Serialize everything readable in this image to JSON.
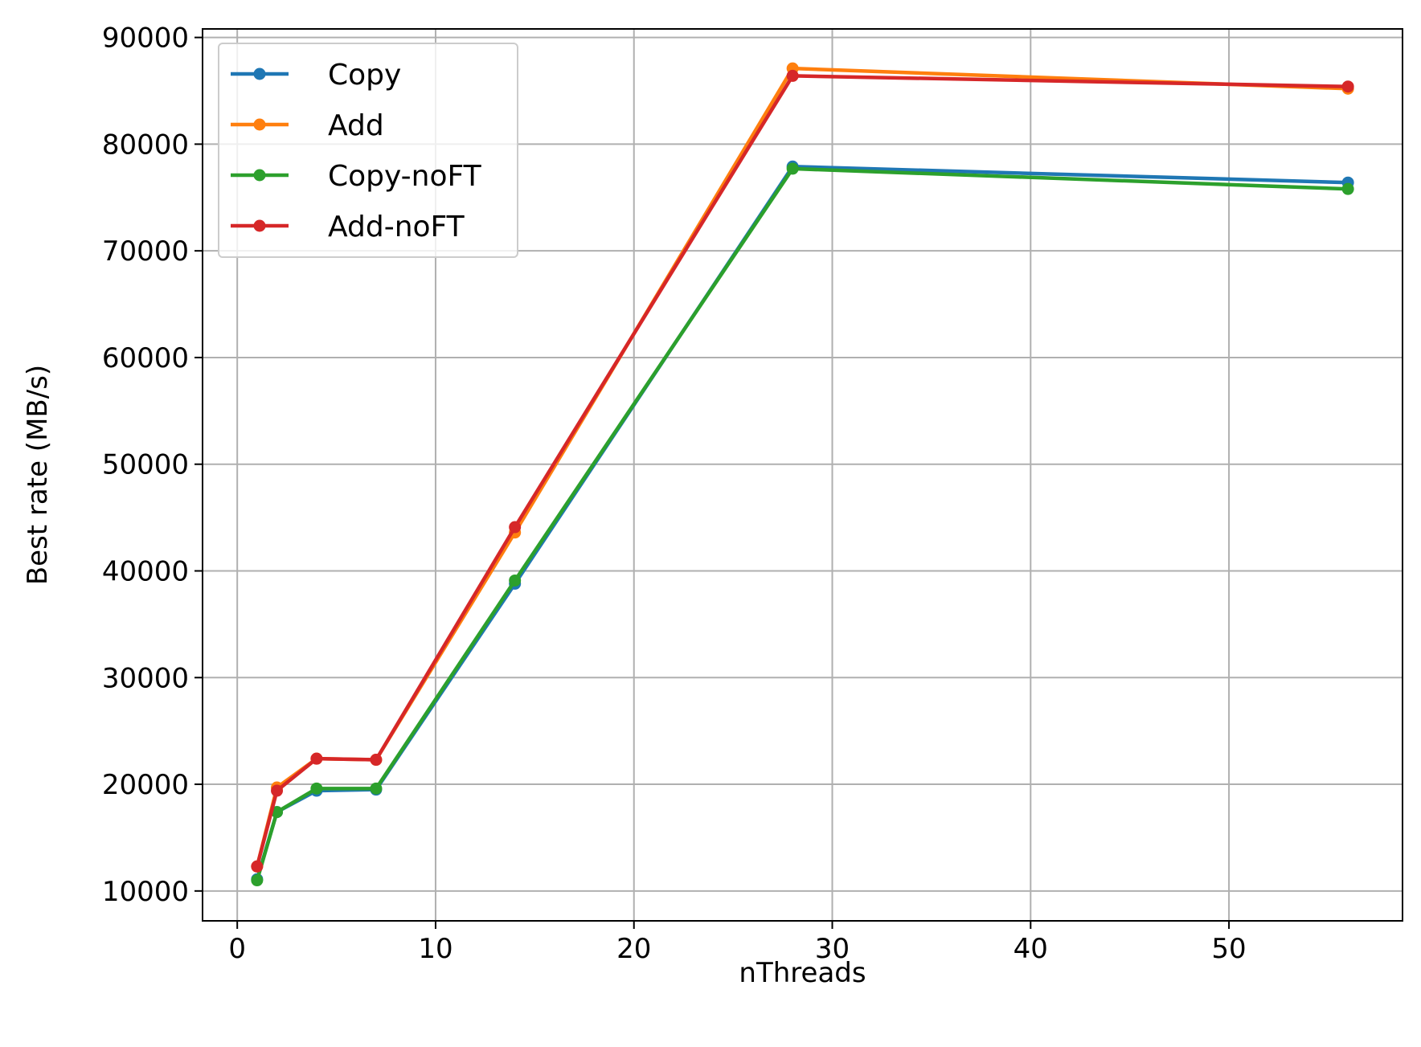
{
  "chart_data": {
    "type": "line",
    "title": "",
    "xlabel": "nThreads",
    "ylabel": "Best rate (MB/s)",
    "xlim": [
      -1.75,
      58.75
    ],
    "ylim": [
      7200,
      90800
    ],
    "x_ticks": [
      0,
      10,
      20,
      30,
      40,
      50
    ],
    "y_ticks": [
      10000,
      20000,
      30000,
      40000,
      50000,
      60000,
      70000,
      80000,
      90000
    ],
    "grid": true,
    "legend_position": "top-left",
    "x": [
      1,
      2,
      4,
      7,
      14,
      28,
      56
    ],
    "series": [
      {
        "name": "Copy",
        "color": "#1f77b4",
        "values": [
          11100,
          17400,
          19400,
          19500,
          38800,
          77900,
          76400
        ]
      },
      {
        "name": "Add",
        "color": "#ff7f0e",
        "values": [
          12300,
          19700,
          22400,
          22300,
          43600,
          87100,
          85200
        ]
      },
      {
        "name": "Copy-noFT",
        "color": "#2ca02c",
        "values": [
          11000,
          17400,
          19600,
          19600,
          39100,
          77700,
          75800
        ]
      },
      {
        "name": "Add-noFT",
        "color": "#d62728",
        "values": [
          12300,
          19400,
          22400,
          22300,
          44100,
          86400,
          85400
        ]
      }
    ]
  }
}
